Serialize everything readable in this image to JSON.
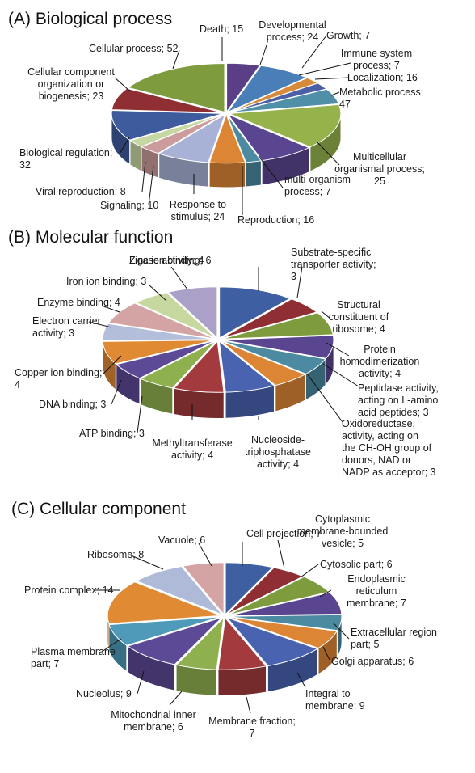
{
  "chart_data": [
    {
      "type": "pie",
      "title": "(A) Biological process",
      "categories": [
        "Death",
        "Developmental process",
        "Growth",
        "Immune system process",
        "Localization",
        "Metabolic process",
        "Multicellular organismal process",
        "multi-organism process",
        "Reproduction",
        "Response to stimulus",
        "Signaling",
        "Viral reproduction",
        "Biological regulation",
        "Cellular component organization or biogenesis",
        "Cellular process"
      ],
      "values": [
        15,
        24,
        7,
        7,
        16,
        47,
        25,
        7,
        16,
        24,
        10,
        8,
        32,
        23,
        52
      ],
      "colors": [
        "#5b3f86",
        "#4a7eb8",
        "#d68a3a",
        "#4a5fa5",
        "#4f8fa8",
        "#95b34a",
        "#5a4590",
        "#4b8aa0",
        "#dc8535",
        "#a7b2d6",
        "#cc9c9c",
        "#c5d7a2",
        "#3e5c9d",
        "#8f2f33",
        "#7e9c3e"
      ],
      "labels": [
        {
          "lines": [
            "Death; 15"
          ]
        },
        {
          "lines": [
            "Developmental",
            "process; 24"
          ]
        },
        {
          "lines": [
            "Growth; 7"
          ]
        },
        {
          "lines": [
            "Immune system",
            "process; 7"
          ]
        },
        {
          "lines": [
            "Localization; 16"
          ]
        },
        {
          "lines": [
            "Metabolic process;",
            "47"
          ]
        },
        {
          "lines": [
            "Multicellular",
            "organismal process;",
            "25"
          ]
        },
        {
          "lines": [
            "multi-organism",
            "process; 7"
          ]
        },
        {
          "lines": [
            "Reproduction; 16"
          ]
        },
        {
          "lines": [
            "Response to",
            "stimulus; 24"
          ]
        },
        {
          "lines": [
            "Signaling; 10"
          ]
        },
        {
          "lines": [
            "Viral reproduction; 8"
          ]
        },
        {
          "lines": [
            "Biological regulation;",
            "32"
          ]
        },
        {
          "lines": [
            "Cellular component",
            "organization or",
            "biogenesis; 23"
          ]
        },
        {
          "lines": [
            "Cellular process; 52"
          ]
        }
      ]
    },
    {
      "type": "pie",
      "title": "(B) Molecular function",
      "categories": [
        "Zinc ion binding",
        "Substrate-specific transporter activity",
        "Structural constituent of ribosome",
        "Protein homodimerization activity",
        "Peptidase activity, acting on L-amino acid peptides",
        "Oxidoreductase, activity, acting on the CH-OH group of donors, NAD or NADP as acceptor",
        "Nucleoside-triphosphatase activity",
        "Methyltransferase activity",
        "ATP binding",
        "DNA binding",
        "Copper ion binding",
        "Electron carrier activity",
        "Enzyme binding",
        "Iron ion binding",
        "Ligase activity"
      ],
      "values": [
        6,
        3,
        4,
        4,
        3,
        3,
        4,
        4,
        3,
        3,
        4,
        3,
        4,
        3,
        4
      ],
      "colors": [
        "#3f5fa3",
        "#8f2f33",
        "#7e9c3e",
        "#5a4590",
        "#4b8aa0",
        "#dc8535",
        "#4a63b0",
        "#a33a3d",
        "#8fb04e",
        "#5d4a96",
        "#e08a33",
        "#b3bedb",
        "#d4a3a3",
        "#c7d7a0",
        "#aaa0c8"
      ],
      "labels": [
        {
          "lines": [
            "Zinc ion binding; 6"
          ]
        },
        {
          "lines": [
            "Substrate-specific",
            "transporter activity;",
            "3"
          ]
        },
        {
          "lines": [
            "Structural",
            "constituent of",
            "ribosome; 4"
          ]
        },
        {
          "lines": [
            "Protein",
            "homodimerization",
            "activity; 4"
          ]
        },
        {
          "lines": [
            "Peptidase activity,",
            "acting on L-amino",
            "acid peptides; 3"
          ]
        },
        {
          "lines": [
            "Oxidoreductase,",
            "activity, acting on",
            "the CH-OH group of",
            "donors, NAD or",
            "NADP as acceptor; 3"
          ]
        },
        {
          "lines": [
            "Nucleoside-",
            "triphosphatase",
            "activity; 4"
          ]
        },
        {
          "lines": [
            "Methyltransferase",
            "activity; 4"
          ]
        },
        {
          "lines": [
            "ATP binding; 3"
          ]
        },
        {
          "lines": [
            "DNA binding; 3"
          ]
        },
        {
          "lines": [
            "Copper ion binding;",
            "4"
          ]
        },
        {
          "lines": [
            "Electron carrier",
            "activity; 3"
          ]
        },
        {
          "lines": [
            "Enzyme binding; 4"
          ]
        },
        {
          "lines": [
            "Iron ion binding; 3"
          ]
        },
        {
          "lines": [
            "Ligase activity; 4"
          ]
        }
      ]
    },
    {
      "type": "pie",
      "title": "(C) Cellular component",
      "categories": [
        "Cell projection",
        "Cytoplasmic membrane-bounded vesicle",
        "Cytosolic part",
        "Endoplasmic reticulum membrane",
        "Extracellular region part",
        "Golgi apparatus",
        "Integral to membrane",
        "Membrane fraction",
        "Mitochondrial inner membrane",
        "Nucleolus",
        "Plasma membrane part",
        "Protein complex",
        "Ribosome",
        "Vacuole"
      ],
      "values": [
        7,
        5,
        6,
        7,
        5,
        6,
        9,
        7,
        6,
        9,
        7,
        14,
        8,
        6
      ],
      "colors": [
        "#3f5fa3",
        "#8f2f33",
        "#7e9c3e",
        "#5a4590",
        "#4b8aa0",
        "#dc8535",
        "#4a63b0",
        "#a33a3d",
        "#8fb04e",
        "#5d4a96",
        "#4f9ab8",
        "#e08a33",
        "#aebad8",
        "#d4a3a3"
      ],
      "labels": [
        {
          "lines": [
            "Cell projection; 7"
          ]
        },
        {
          "lines": [
            "Cytoplasmic",
            "membrane-bounded",
            "vesicle; 5"
          ]
        },
        {
          "lines": [
            "Cytosolic part; 6"
          ]
        },
        {
          "lines": [
            "Endoplasmic",
            "reticulum",
            "membrane; 7"
          ]
        },
        {
          "lines": [
            "Extracellular region",
            "part; 5"
          ]
        },
        {
          "lines": [
            "Golgi apparatus; 6"
          ]
        },
        {
          "lines": [
            "Integral to",
            "membrane; 9"
          ]
        },
        {
          "lines": [
            "Membrane fraction;",
            "7"
          ]
        },
        {
          "lines": [
            "Mitochondrial inner",
            "membrane; 6"
          ]
        },
        {
          "lines": [
            "Nucleolus; 9"
          ]
        },
        {
          "lines": [
            "Plasma membrane",
            "part; 7"
          ]
        },
        {
          "lines": [
            "Protein complex; 14"
          ]
        },
        {
          "lines": [
            "Ribosome; 8"
          ]
        },
        {
          "lines": [
            "Vacuole; 6"
          ]
        }
      ]
    }
  ]
}
